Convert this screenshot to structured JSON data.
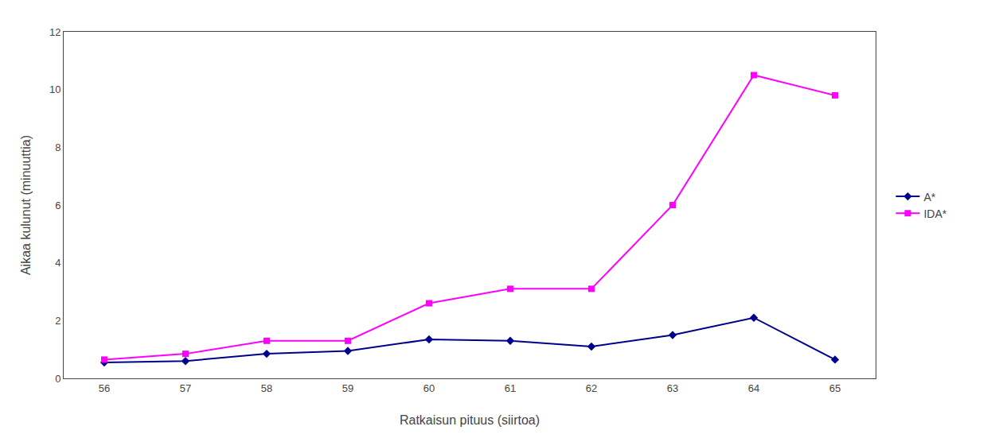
{
  "chart_data": {
    "type": "line",
    "x_label": "Ratkaisun pituus (siirtoa)",
    "y_label": "Aikaa kulunut (minuuttia)",
    "x": [
      56,
      57,
      58,
      59,
      60,
      61,
      62,
      63,
      64,
      65
    ],
    "series": [
      {
        "name": "A*",
        "color": "#00008B",
        "marker": "diamond",
        "values": [
          0.55,
          0.6,
          0.85,
          0.95,
          1.35,
          1.3,
          1.1,
          1.5,
          2.1,
          0.65
        ]
      },
      {
        "name": "IDA*",
        "color": "#FF00FF",
        "marker": "square",
        "values": [
          0.65,
          0.85,
          1.3,
          1.3,
          2.6,
          3.1,
          3.1,
          6.0,
          10.5,
          9.8
        ]
      }
    ],
    "xlim": [
      55.5,
      65.5
    ],
    "xticks": [
      56,
      57,
      58,
      59,
      60,
      61,
      62,
      63,
      64,
      65
    ],
    "ylim": [
      0,
      12
    ],
    "yticks": [
      0,
      2,
      4,
      6,
      8,
      10,
      12
    ],
    "grid": false,
    "legend": "right"
  }
}
